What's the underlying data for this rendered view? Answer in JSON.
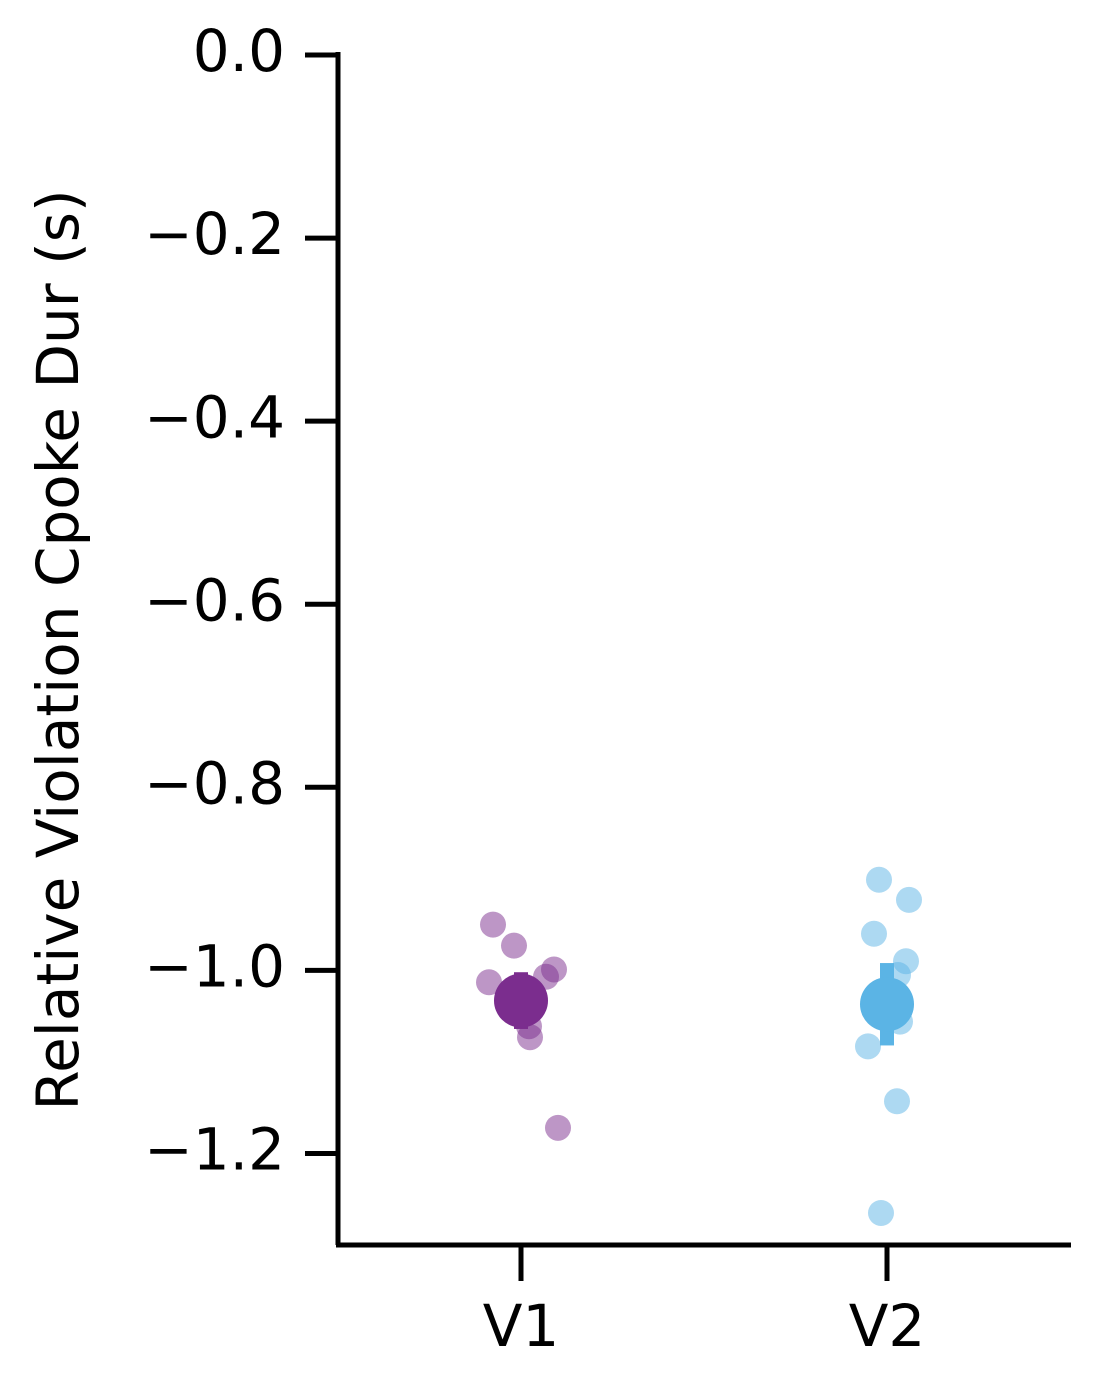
{
  "chart_data": {
    "type": "strip",
    "ylabel": "Relative Violation Cpoke Dur (s)",
    "categories": [
      "V1",
      "V2"
    ],
    "ylim": [
      -1.3,
      0
    ],
    "yticks": [
      {
        "value": 0,
        "label": "0.0"
      },
      {
        "value": -0.2,
        "label": "−0.2"
      },
      {
        "value": -0.4,
        "label": "−0.4"
      },
      {
        "value": -0.6,
        "label": "−0.6"
      },
      {
        "value": -0.8,
        "label": "−0.8"
      },
      {
        "value": -1.0,
        "label": "−1.0"
      },
      {
        "value": -1.2,
        "label": "−1.2"
      }
    ],
    "groups": [
      {
        "color": "#7b2d8e",
        "points": [
          -0.95,
          -0.973,
          -1.013,
          -0.999,
          -1.007,
          -1.061,
          -1.073,
          -1.172
        ],
        "mean": -1.033,
        "error": 0.031
      },
      {
        "color": "#5bb4e5",
        "points": [
          -0.901,
          -0.923,
          -0.96,
          -0.99,
          -1.005,
          -1.056,
          -1.083,
          -1.143,
          -1.265
        ],
        "mean": -1.037,
        "error": 0.045
      }
    ]
  }
}
